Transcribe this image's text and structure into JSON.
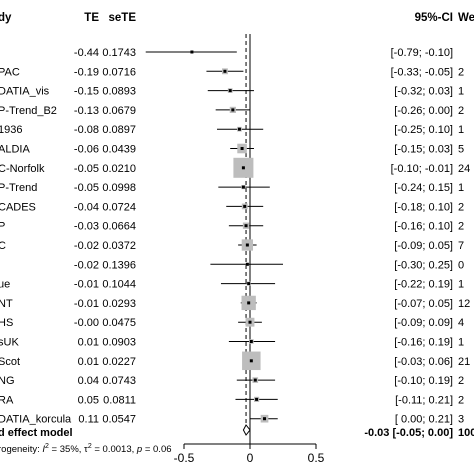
{
  "chart_data": {
    "type": "forest",
    "columns": {
      "study": "dy",
      "te": "TE",
      "sete": "seTE",
      "ci": "95%-CI",
      "weight": "We"
    },
    "studies": [
      {
        "name": "",
        "te": -0.44,
        "sete": 0.1743,
        "ci_low": -0.79,
        "ci_high": -0.1,
        "te_label": "-0.44",
        "sete_label": "0.1743",
        "ci_label": "[-0.79; -0.10]",
        "weight_label": ""
      },
      {
        "name": "PAC",
        "te": -0.19,
        "sete": 0.0716,
        "ci_low": -0.33,
        "ci_high": -0.05,
        "te_label": "-0.19",
        "sete_label": "0.0716",
        "ci_label": "[-0.33; -0.05]",
        "weight_label": "2"
      },
      {
        "name": "DATIA_vis",
        "te": -0.15,
        "sete": 0.0893,
        "ci_low": -0.32,
        "ci_high": 0.03,
        "te_label": "-0.15",
        "sete_label": "0.0893",
        "ci_label": "[-0.32; 0.03]",
        "weight_label": "1"
      },
      {
        "name": "P-Trend_B2",
        "te": -0.13,
        "sete": 0.0679,
        "ci_low": -0.26,
        "ci_high": 0.0,
        "te_label": "-0.13",
        "sete_label": "0.0679",
        "ci_label": "[-0.26; 0.00]",
        "weight_label": "2"
      },
      {
        "name": "1936",
        "te": -0.08,
        "sete": 0.0897,
        "ci_low": -0.25,
        "ci_high": 0.1,
        "te_label": "-0.08",
        "sete_label": "0.0897",
        "ci_label": "[-0.25; 0.10]",
        "weight_label": "1"
      },
      {
        "name": "ALDIA",
        "te": -0.06,
        "sete": 0.0439,
        "ci_low": -0.15,
        "ci_high": 0.03,
        "te_label": "-0.06",
        "sete_label": "0.0439",
        "ci_label": "[-0.15; 0.03]",
        "weight_label": "5"
      },
      {
        "name": "C-Norfolk",
        "te": -0.05,
        "sete": 0.021,
        "ci_low": -0.1,
        "ci_high": -0.01,
        "te_label": "-0.05",
        "sete_label": "0.0210",
        "ci_label": "[-0.10; -0.01]",
        "weight_label": "24"
      },
      {
        "name": "P-Trend",
        "te": -0.05,
        "sete": 0.0998,
        "ci_low": -0.24,
        "ci_high": 0.15,
        "te_label": "-0.05",
        "sete_label": "0.0998",
        "ci_label": "[-0.24; 0.15]",
        "weight_label": "1"
      },
      {
        "name": "CADES",
        "te": -0.04,
        "sete": 0.0724,
        "ci_low": -0.18,
        "ci_high": 0.1,
        "te_label": "-0.04",
        "sete_label": "0.0724",
        "ci_label": "[-0.18; 0.10]",
        "weight_label": "2"
      },
      {
        "name": "P",
        "te": -0.03,
        "sete": 0.0664,
        "ci_low": -0.16,
        "ci_high": 0.1,
        "te_label": "-0.03",
        "sete_label": "0.0664",
        "ci_label": "[-0.16; 0.10]",
        "weight_label": "2"
      },
      {
        "name": "C",
        "te": -0.02,
        "sete": 0.0372,
        "ci_low": -0.09,
        "ci_high": 0.05,
        "te_label": "-0.02",
        "sete_label": "0.0372",
        "ci_label": "[-0.09; 0.05]",
        "weight_label": "7"
      },
      {
        "name": "",
        "te": -0.02,
        "sete": 0.1396,
        "ci_low": -0.3,
        "ci_high": 0.25,
        "te_label": "-0.02",
        "sete_label": "0.1396",
        "ci_label": "[-0.30; 0.25]",
        "weight_label": "0"
      },
      {
        "name": "ue",
        "te": -0.01,
        "sete": 0.1044,
        "ci_low": -0.22,
        "ci_high": 0.19,
        "te_label": "-0.01",
        "sete_label": "0.1044",
        "ci_label": "[-0.22; 0.19]",
        "weight_label": "1"
      },
      {
        "name": "NT",
        "te": -0.01,
        "sete": 0.0293,
        "ci_low": -0.07,
        "ci_high": 0.05,
        "te_label": "-0.01",
        "sete_label": "0.0293",
        "ci_label": "[-0.07; 0.05]",
        "weight_label": "12"
      },
      {
        "name": "HS",
        "te": -0.0,
        "sete": 0.0475,
        "ci_low": -0.09,
        "ci_high": 0.09,
        "te_label": "-0.00",
        "sete_label": "0.0475",
        "ci_label": "[-0.09; 0.09]",
        "weight_label": "4"
      },
      {
        "name": "sUK",
        "te": 0.01,
        "sete": 0.0903,
        "ci_low": -0.16,
        "ci_high": 0.19,
        "te_label": "0.01",
        "sete_label": "0.0903",
        "ci_label": "[-0.16; 0.19]",
        "weight_label": "1"
      },
      {
        "name": "Scot",
        "te": 0.01,
        "sete": 0.0227,
        "ci_low": -0.03,
        "ci_high": 0.06,
        "te_label": "0.01",
        "sete_label": "0.0227",
        "ci_label": "[-0.03; 0.06]",
        "weight_label": "21"
      },
      {
        "name": "NG",
        "te": 0.04,
        "sete": 0.0743,
        "ci_low": -0.1,
        "ci_high": 0.19,
        "te_label": "0.04",
        "sete_label": "0.0743",
        "ci_label": "[-0.10; 0.19]",
        "weight_label": "2"
      },
      {
        "name": "RA",
        "te": 0.05,
        "sete": 0.0811,
        "ci_low": -0.11,
        "ci_high": 0.21,
        "te_label": "0.05",
        "sete_label": "0.0811",
        "ci_label": "[-0.11; 0.21]",
        "weight_label": "2"
      },
      {
        "name": "DATIA_korcula",
        "te": 0.11,
        "sete": 0.0547,
        "ci_low": 0.0,
        "ci_high": 0.21,
        "te_label": "0.11",
        "sete_label": "0.0547",
        "ci_label": "[ 0.00; 0.21]",
        "weight_label": "3"
      }
    ],
    "summary": {
      "label": "d effect model",
      "te": -0.03,
      "ci_low": -0.05,
      "ci_high": 0.0,
      "ci_label": "-0.03 [-0.05; 0.00]",
      "weight_label": "100"
    },
    "heterogeneity": {
      "prefix": "rogeneity: ",
      "i2": "35%",
      "tau2": "0.0013",
      "p": "0.06"
    },
    "xaxis": {
      "ticks": [
        -0.5,
        0,
        0.5
      ],
      "tick_labels": [
        "-0.5",
        "0",
        "0.5"
      ],
      "xlim": [
        -0.55,
        0.55
      ]
    },
    "reference_line": 0,
    "summary_line": -0.03,
    "marker_color": "#bdbdbd"
  }
}
